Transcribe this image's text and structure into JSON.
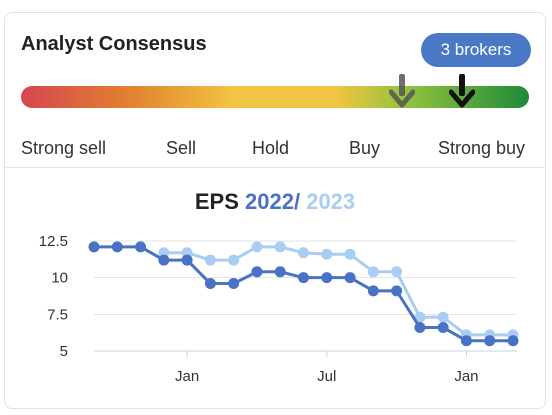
{
  "card": {
    "title": "Analyst Consensus",
    "brokers_badge": "3 brokers"
  },
  "consensus": {
    "labels": [
      "Strong sell",
      "Sell",
      "Hold",
      "Buy",
      "Strong buy"
    ],
    "gradient_colors": [
      "#d5464f",
      "#e2832f",
      "#f1c542",
      "#8cc13d",
      "#1f8a3c"
    ],
    "previous_marker_color": "#555555",
    "current_marker_color": "#111111"
  },
  "eps": {
    "label": "EPS",
    "year1": "2022",
    "separator": "/",
    "year2": "2023"
  },
  "chart_data": {
    "type": "line",
    "title": "EPS 2022 / 2023",
    "xlabel": "",
    "ylabel": "",
    "ylim": [
      5,
      12.5
    ],
    "yticks": [
      5,
      7.5,
      10,
      12.5
    ],
    "ytick_labels": [
      "5",
      "7.5",
      "10",
      "12.5"
    ],
    "xtick_labels": [
      "Jan",
      "Jul",
      "Jan"
    ],
    "xtick_index": [
      4,
      10,
      16
    ],
    "grid": true,
    "legend": "none",
    "series": [
      {
        "name": "2022",
        "color": "#4a72c4",
        "values": [
          12.1,
          12.1,
          12.1,
          11.2,
          11.2,
          9.6,
          9.6,
          10.4,
          10.4,
          10.0,
          10.0,
          10.0,
          9.1,
          9.1,
          6.6,
          6.6,
          5.7,
          5.7,
          5.7
        ]
      },
      {
        "name": "2023",
        "color": "#a9cdf3",
        "values": [
          null,
          null,
          null,
          11.7,
          11.7,
          11.2,
          11.2,
          12.1,
          12.1,
          11.7,
          11.6,
          11.6,
          10.4,
          10.4,
          7.3,
          7.3,
          6.1,
          6.1,
          6.1
        ]
      }
    ]
  }
}
